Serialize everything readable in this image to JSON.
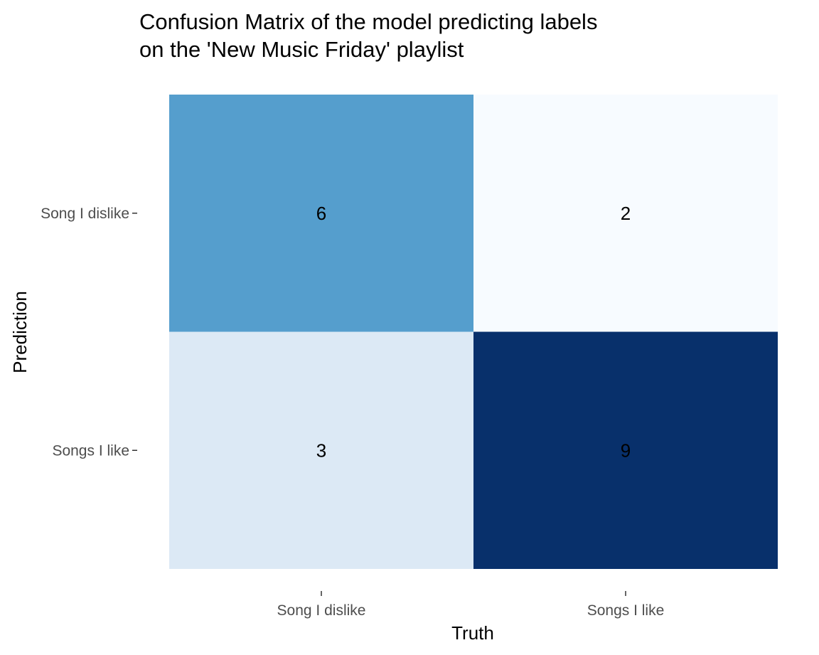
{
  "chart_data": {
    "type": "heatmap",
    "title_lines": [
      "Confusion Matrix of the model predicting labels",
      "on the 'New Music Friday' playlist"
    ],
    "xlabel": "Truth",
    "ylabel": "Prediction",
    "x_categories": [
      "Song I dislike",
      "Songs I like"
    ],
    "y_categories": [
      "Song I dislike",
      "Songs I like"
    ],
    "cells": [
      {
        "truth": "Song I dislike",
        "prediction": "Song I dislike",
        "value": 6,
        "color": "#559ecd"
      },
      {
        "truth": "Songs I like",
        "prediction": "Song I dislike",
        "value": 2,
        "color": "#f7fbff"
      },
      {
        "truth": "Song I dislike",
        "prediction": "Songs I like",
        "value": 3,
        "color": "#dce9f5"
      },
      {
        "truth": "Songs I like",
        "prediction": "Songs I like",
        "value": 9,
        "color": "#08306b"
      }
    ],
    "fill_scale": {
      "low": 2,
      "high": 9,
      "low_color": "#f7fbff",
      "high_color": "#08306b"
    },
    "grid": false,
    "legend": false
  }
}
